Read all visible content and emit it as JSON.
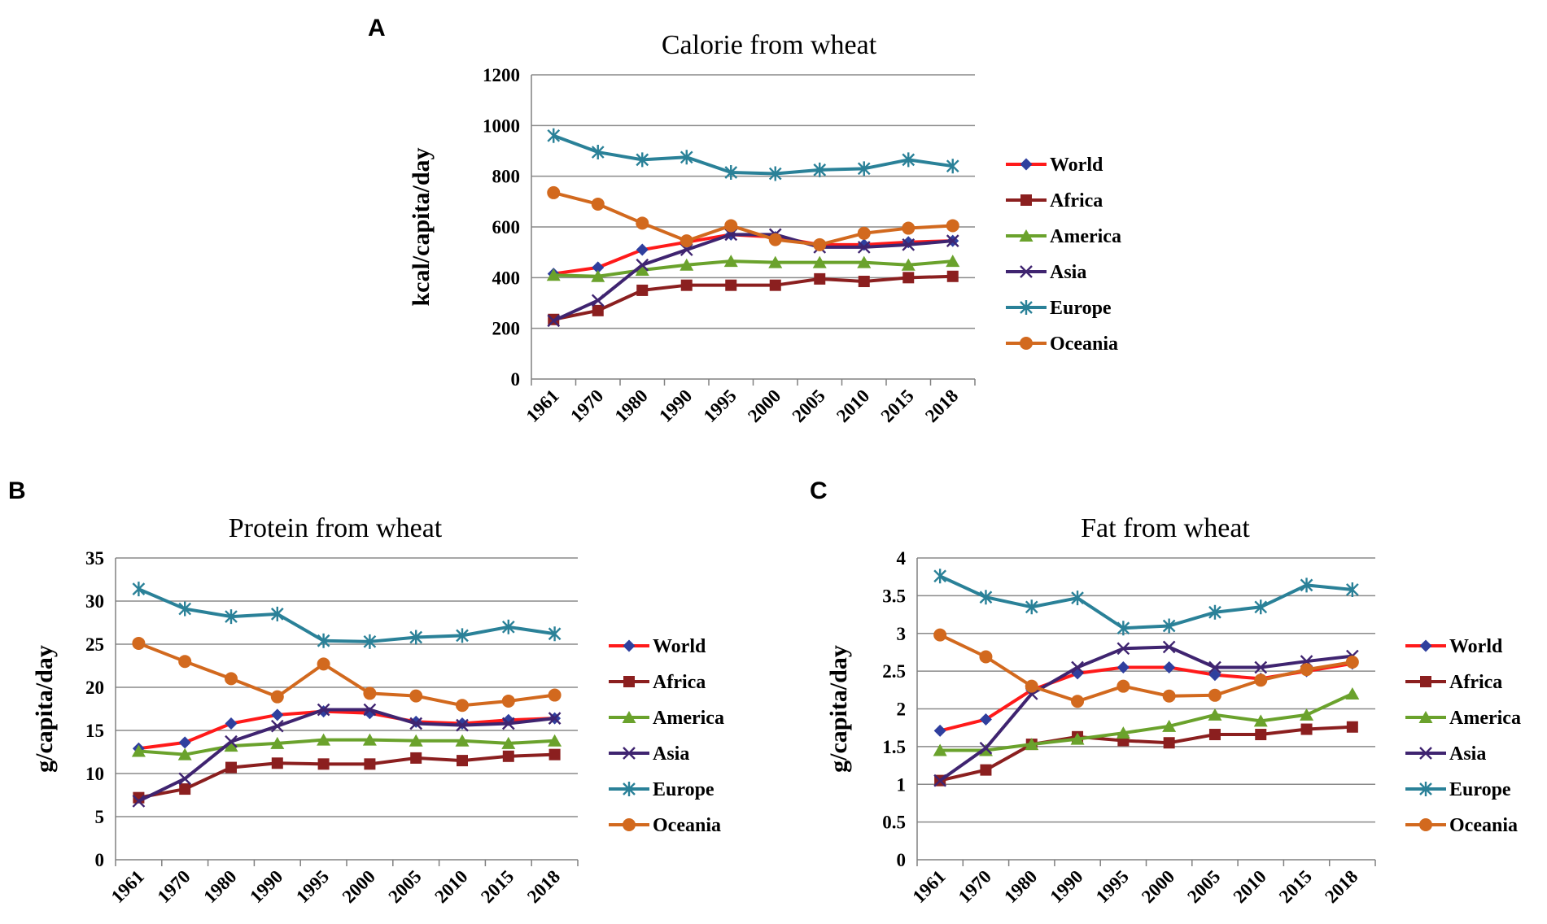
{
  "colors": {
    "World": "#ff1a1a",
    "World_marker": "#2f3f9e",
    "Africa": "#8b1f1f",
    "America": "#6aa22c",
    "Asia": "#3f2470",
    "Europe": "#2a8198",
    "Oceania": "#d2691e",
    "grid": "#8a8a8a",
    "axis": "#808080"
  },
  "chart_data": [
    {
      "panel": "A",
      "type": "line",
      "title": "Calorie from wheat",
      "xlabel": "",
      "ylabel": "kcal/capita/day",
      "categories": [
        "1961",
        "1970",
        "1980",
        "1990",
        "1995",
        "2000",
        "2005",
        "2010",
        "2015",
        "2018"
      ],
      "ylim": [
        0,
        1200
      ],
      "yticks": [
        "0",
        "200",
        "400",
        "600",
        "800",
        "1000",
        "1200"
      ],
      "grid": true,
      "legend": "right",
      "series": [
        {
          "name": "World",
          "marker": "diamond",
          "values": [
            415,
            440,
            510,
            540,
            570,
            560,
            530,
            530,
            540,
            545
          ]
        },
        {
          "name": "Africa",
          "marker": "square",
          "values": [
            235,
            270,
            350,
            370,
            370,
            370,
            395,
            385,
            400,
            405
          ]
        },
        {
          "name": "America",
          "marker": "triangle",
          "values": [
            410,
            405,
            430,
            450,
            465,
            460,
            460,
            460,
            450,
            465
          ]
        },
        {
          "name": "Asia",
          "marker": "x",
          "values": [
            230,
            310,
            450,
            510,
            570,
            570,
            520,
            520,
            530,
            545
          ]
        },
        {
          "name": "Europe",
          "marker": "star",
          "values": [
            960,
            895,
            865,
            875,
            815,
            810,
            825,
            830,
            865,
            840
          ]
        },
        {
          "name": "Oceania",
          "marker": "circle",
          "values": [
            735,
            690,
            615,
            545,
            605,
            550,
            530,
            575,
            595,
            605
          ]
        }
      ]
    },
    {
      "panel": "B",
      "type": "line",
      "title": "Protein from wheat",
      "xlabel": "",
      "ylabel": "g/capita/day",
      "categories": [
        "1961",
        "1970",
        "1980",
        "1990",
        "1995",
        "2000",
        "2005",
        "2010",
        "2015",
        "2018"
      ],
      "ylim": [
        0,
        35
      ],
      "yticks": [
        "0",
        "5",
        "10",
        "15",
        "20",
        "25",
        "30",
        "35"
      ],
      "grid": true,
      "legend": "right",
      "series": [
        {
          "name": "World",
          "marker": "diamond",
          "values": [
            12.9,
            13.6,
            15.8,
            16.8,
            17.2,
            17.0,
            16.0,
            15.8,
            16.2,
            16.4
          ]
        },
        {
          "name": "Africa",
          "marker": "square",
          "values": [
            7.2,
            8.2,
            10.7,
            11.2,
            11.1,
            11.1,
            11.8,
            11.5,
            12.0,
            12.2
          ]
        },
        {
          "name": "America",
          "marker": "triangle",
          "values": [
            12.6,
            12.2,
            13.2,
            13.5,
            13.9,
            13.9,
            13.8,
            13.8,
            13.5,
            13.8
          ]
        },
        {
          "name": "Asia",
          "marker": "x",
          "values": [
            6.8,
            9.4,
            13.7,
            15.5,
            17.4,
            17.4,
            15.8,
            15.6,
            15.8,
            16.4
          ]
        },
        {
          "name": "Europe",
          "marker": "star",
          "values": [
            31.4,
            29.1,
            28.2,
            28.5,
            25.4,
            25.3,
            25.8,
            26.0,
            27.0,
            26.2
          ]
        },
        {
          "name": "Oceania",
          "marker": "circle",
          "values": [
            25.1,
            23.0,
            21.0,
            18.9,
            22.7,
            19.3,
            19.0,
            17.9,
            18.4,
            19.1
          ]
        }
      ]
    },
    {
      "panel": "C",
      "type": "line",
      "title": "Fat from wheat",
      "xlabel": "",
      "ylabel": "g/capita/day",
      "categories": [
        "1961",
        "1970",
        "1980",
        "1990",
        "1995",
        "2000",
        "2005",
        "2010",
        "2015",
        "2018"
      ],
      "ylim": [
        0,
        4
      ],
      "yticks": [
        "0",
        "0.5",
        "1",
        "1.5",
        "2",
        "2.5",
        "3",
        "3.5",
        "4"
      ],
      "grid": true,
      "legend": "right",
      "series": [
        {
          "name": "World",
          "marker": "diamond",
          "values": [
            1.71,
            1.86,
            2.25,
            2.47,
            2.55,
            2.55,
            2.45,
            2.4,
            2.5,
            2.6
          ]
        },
        {
          "name": "Africa",
          "marker": "square",
          "values": [
            1.05,
            1.19,
            1.53,
            1.63,
            1.58,
            1.55,
            1.66,
            1.66,
            1.73,
            1.76
          ]
        },
        {
          "name": "America",
          "marker": "triangle",
          "values": [
            1.45,
            1.45,
            1.53,
            1.6,
            1.68,
            1.77,
            1.92,
            1.84,
            1.92,
            2.2
          ]
        },
        {
          "name": "Asia",
          "marker": "x",
          "values": [
            1.05,
            1.48,
            2.2,
            2.55,
            2.8,
            2.82,
            2.55,
            2.55,
            2.63,
            2.7
          ]
        },
        {
          "name": "Europe",
          "marker": "star",
          "values": [
            3.76,
            3.48,
            3.35,
            3.47,
            3.07,
            3.1,
            3.28,
            3.35,
            3.64,
            3.58
          ]
        },
        {
          "name": "Oceania",
          "marker": "circle",
          "values": [
            2.98,
            2.69,
            2.3,
            2.1,
            2.3,
            2.17,
            2.18,
            2.38,
            2.52,
            2.62
          ]
        }
      ]
    }
  ]
}
